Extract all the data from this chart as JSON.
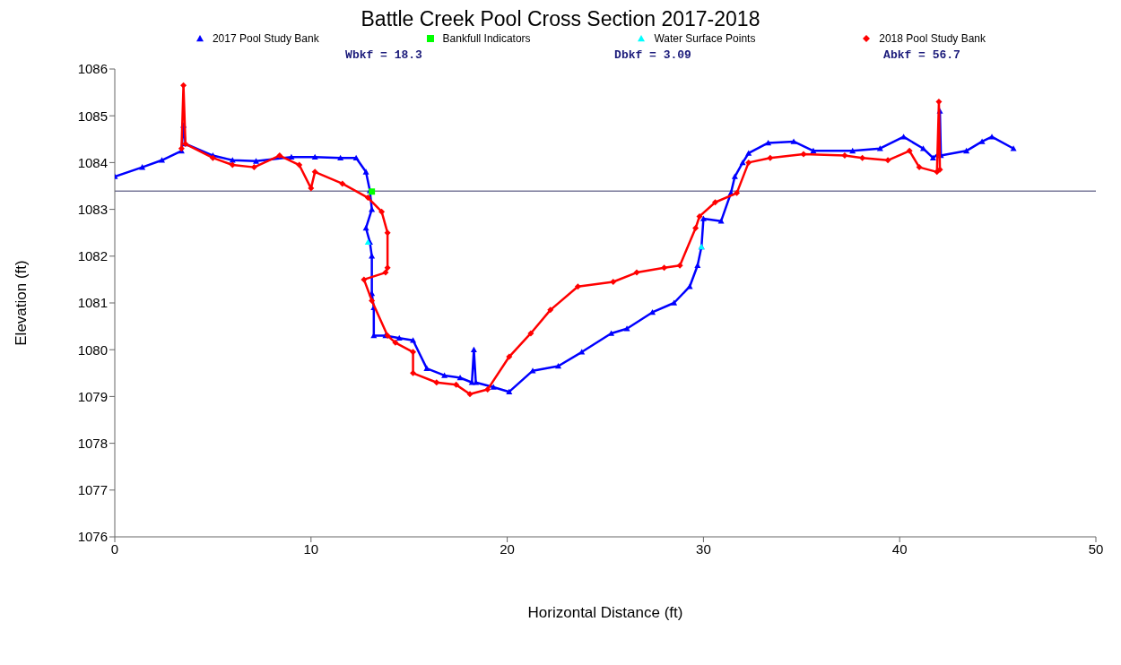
{
  "chart_data": {
    "type": "line",
    "title": "Battle Creek Pool Cross Section 2017-2018",
    "xlabel": "Horizontal Distance (ft)",
    "ylabel": "Elevation (ft)",
    "annotations": [
      "Wbkf = 18.3",
      "Dbkf = 3.09",
      "Abkf = 56.7"
    ],
    "xlim": [
      0,
      50
    ],
    "xticks": [
      0,
      10,
      20,
      30,
      40,
      50
    ],
    "ylim": [
      1076,
      1086
    ],
    "yticks": [
      1076,
      1077,
      1078,
      1079,
      1080,
      1081,
      1082,
      1083,
      1084,
      1085,
      1086
    ],
    "grid": false,
    "legend": "top",
    "ref_lines": [
      {
        "axis": "y",
        "value": 1083.39,
        "color": "#7a7a9a"
      }
    ],
    "series": [
      {
        "name": "2017 Pool Study Bank",
        "color": "#0000ff",
        "marker": "triangle",
        "x": [
          0,
          1.4,
          2.4,
          3.4,
          3.5,
          3.6,
          5,
          6,
          7.2,
          9,
          10.2,
          11.5,
          12.3,
          12.8,
          13.0,
          13.1,
          12.8,
          13.0,
          13.1,
          13.1,
          13.2,
          13.2,
          13.8,
          14.5,
          15.2,
          15.9,
          16.8,
          17.6,
          18.2,
          18.3,
          18.4,
          19.3,
          20.1,
          21.3,
          22.6,
          23.8,
          25.3,
          26.1,
          27.4,
          28.5,
          29.3,
          29.7,
          29.9,
          30.0,
          30.9,
          31.4,
          31.6,
          32.0,
          32.3,
          33.3,
          34.6,
          35.6,
          37.6,
          39.0,
          40.2,
          41.2,
          41.7,
          42.0,
          42.05,
          42.1,
          43.4,
          44.2,
          44.7,
          45.8
        ],
        "values": [
          1083.7,
          1083.9,
          1084.05,
          1084.25,
          1084.8,
          1084.4,
          1084.15,
          1084.05,
          1084.03,
          1084.12,
          1084.12,
          1084.1,
          1084.1,
          1083.8,
          1083.4,
          1083.0,
          1082.6,
          1082.3,
          1082.0,
          1081.2,
          1080.9,
          1080.3,
          1080.3,
          1080.25,
          1080.2,
          1079.6,
          1079.45,
          1079.4,
          1079.3,
          1080.0,
          1079.3,
          1079.2,
          1079.1,
          1079.55,
          1079.65,
          1079.95,
          1080.35,
          1080.45,
          1080.8,
          1081.0,
          1081.35,
          1081.8,
          1082.2,
          1082.8,
          1082.75,
          1083.35,
          1083.7,
          1084.0,
          1084.2,
          1084.42,
          1084.45,
          1084.25,
          1084.25,
          1084.3,
          1084.55,
          1084.3,
          1084.1,
          1084.2,
          1085.1,
          1084.15,
          1084.25,
          1084.45,
          1084.55,
          1084.3
        ]
      },
      {
        "name": "Bankfull Indicators",
        "color": "#00ff00",
        "marker": "square",
        "type": "scatter",
        "x": [
          13.1
        ],
        "values": [
          1083.38
        ]
      },
      {
        "name": "Water Surface Points",
        "color": "#00ffff",
        "marker": "triangle",
        "type": "scatter",
        "x": [
          12.9,
          29.9
        ],
        "values": [
          1082.3,
          1082.2
        ]
      },
      {
        "name": "2018 Pool Study Bank",
        "color": "#ff0000",
        "marker": "diamond",
        "x": [
          3.4,
          3.5,
          3.6,
          5.0,
          6,
          7.1,
          8.4,
          9.4,
          10.0,
          10.2,
          11.6,
          12.9,
          13.6,
          13.9,
          13.9,
          13.8,
          12.7,
          13.1,
          13.9,
          14.3,
          15.2,
          15.2,
          16.4,
          17.4,
          18.1,
          19.0,
          20.1,
          21.2,
          22.2,
          23.6,
          25.4,
          26.6,
          28.0,
          28.8,
          29.6,
          29.8,
          30.6,
          31.7,
          32.3,
          33.4,
          35.1,
          37.2,
          38.1,
          39.4,
          40.5,
          41.0,
          41.9,
          42.0,
          42.05
        ],
        "values": [
          1084.3,
          1085.65,
          1084.4,
          1084.1,
          1083.95,
          1083.9,
          1084.15,
          1083.95,
          1083.45,
          1083.8,
          1083.55,
          1083.25,
          1082.95,
          1082.5,
          1081.75,
          1081.65,
          1081.5,
          1081.05,
          1080.3,
          1080.15,
          1079.95,
          1079.5,
          1079.3,
          1079.25,
          1079.05,
          1079.15,
          1079.85,
          1080.35,
          1080.85,
          1081.35,
          1081.45,
          1081.65,
          1081.75,
          1081.8,
          1082.6,
          1082.85,
          1083.15,
          1083.35,
          1084.0,
          1084.1,
          1084.18,
          1084.15,
          1084.1,
          1084.05,
          1084.25,
          1083.9,
          1083.8,
          1085.3,
          1083.85
        ]
      }
    ]
  }
}
